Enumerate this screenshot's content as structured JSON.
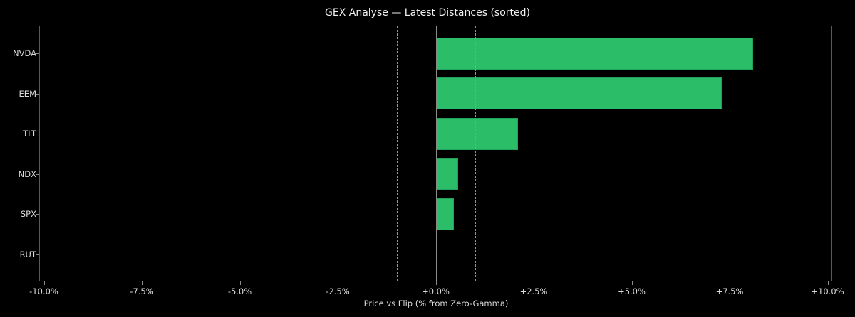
{
  "chart_data": {
    "type": "bar",
    "orientation": "horizontal",
    "title": "GEX Analyse — Latest Distances (sorted)",
    "xlabel": "Price vs Flip (% from Zero-Gamma)",
    "ylabel": "",
    "categories": [
      "NVDA",
      "EEM",
      "TLT",
      "NDX",
      "SPX",
      "RUT"
    ],
    "values": [
      8.1,
      7.3,
      2.1,
      0.57,
      0.47,
      0.03
    ],
    "xlim": [
      -10.0,
      10.0
    ],
    "xticks": [
      "-10.0%",
      "-7.5%",
      "-5.0%",
      "-2.5%",
      "+0.0%",
      "+2.5%",
      "+5.0%",
      "+7.5%",
      "+10.0%"
    ],
    "reference_lines": [
      {
        "x": 0.0,
        "style": "solid",
        "color": "#8a8a8a"
      },
      {
        "x": -1.0,
        "style": "dashed",
        "color": "#1fd67a"
      },
      {
        "x": 1.0,
        "style": "dashed",
        "color": "#1fd67a"
      }
    ],
    "bar_color": "#2bbd68",
    "background": "#000000",
    "grid": false,
    "legend": null
  }
}
